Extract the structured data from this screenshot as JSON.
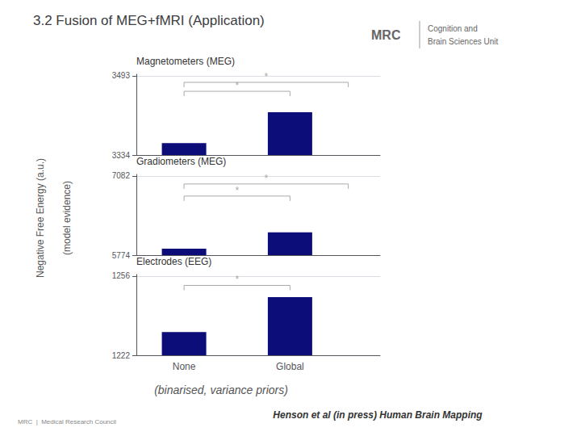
{
  "title": "3.2 Fusion of MEG+fMRI (Application)",
  "ylabel": [
    "Negative Free Energy (a.u.)",
    "(model evidence)"
  ],
  "subtitle": "(binarised, variance priors)",
  "footer": "Henson et al (in press) Human Brain Mapping",
  "logo": [
    "MRC",
    "Cognition and",
    "Brain Sciences Unit"
  ],
  "footnote": "MRC  |  Medical Research Council",
  "chart_data": [
    {
      "type": "bar",
      "title": "Magnetometers (MEG)",
      "categories": [
        null,
        null
      ],
      "values": [
        3358,
        3420
      ],
      "color": "#0d0d7a",
      "ylim": [
        3334,
        3496.18
      ],
      "yticks": [
        3334,
        3493
      ],
      "grid": true,
      "annotations": [
        {
          "text": "*",
          "y": 3462,
          "x1": 0,
          "x2": 1,
          "color": "#aaaaaa"
        },
        {
          "text": "*",
          "y": 3480,
          "x1": 0,
          "x2": 1.55,
          "color": "#aaaaaa"
        }
      ]
    },
    {
      "type": "bar",
      "title": "Gradiometers (MEG)",
      "categories": [
        null,
        null
      ],
      "values": [
        5880,
        6150
      ],
      "color": "#0d0d7a",
      "ylim": [
        5774,
        7108.16
      ],
      "yticks": [
        5774,
        7082
      ],
      "grid": true,
      "annotations": [
        {
          "text": "*",
          "y": 6750,
          "x1": 0,
          "x2": 1,
          "color": "#aaaaaa"
        },
        {
          "text": "*",
          "y": 6950,
          "x1": 0,
          "x2": 1.55,
          "color": "#aaaaaa"
        }
      ]
    },
    {
      "type": "bar",
      "title": "Electrodes (EEG)",
      "categories": [
        "None",
        "Global"
      ],
      "values": [
        1232,
        1247
      ],
      "color": "#0d0d7a",
      "ylim": [
        1222,
        1256.68
      ],
      "yticks": [
        1222,
        1256
      ],
      "grid": true,
      "annotations": [
        {
          "text": "*",
          "y": 1252,
          "x1": 0,
          "x2": 1,
          "color": "#aaaaaa"
        }
      ]
    }
  ]
}
